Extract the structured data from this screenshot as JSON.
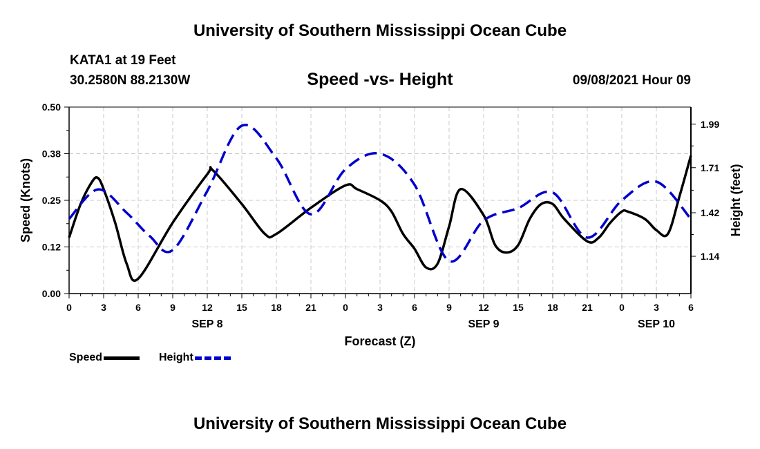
{
  "header": {
    "title": "University of Southern Mississippi Ocean Cube",
    "station": "KATA1 at 19 Feet",
    "coords": "30.2580N  88.2130W",
    "datetime": "09/08/2021 Hour 09"
  },
  "footer": {
    "title": "University of Southern Mississippi Ocean Cube"
  },
  "colors": {
    "speed": "#000000",
    "height": "#0000cc",
    "grid": "#c8c8c8"
  },
  "chart_data": {
    "type": "line",
    "title": "Speed -vs- Height",
    "xlabel": "Forecast (Z)",
    "ylabel_left": "Speed (Knots)",
    "ylabel_right": "Height (feet)",
    "x_ticks": [
      "0",
      "3",
      "6",
      "9",
      "12",
      "15",
      "18",
      "21",
      "0",
      "3",
      "6",
      "9",
      "12",
      "15",
      "18",
      "21",
      "0",
      "3",
      "6"
    ],
    "day_labels": [
      {
        "label": "SEP 8",
        "hour_index": 12
      },
      {
        "label": "SEP 9",
        "hour_index": 36
      },
      {
        "label": "SEP 10",
        "hour_index": 51
      }
    ],
    "xlim": [
      0,
      54
    ],
    "ylim_left": [
      0,
      0.5
    ],
    "ylim_right": [
      0.9,
      2.1
    ],
    "y_ticks_left": [
      "0.00",
      "0.12",
      "0.25",
      "0.38",
      "0.50"
    ],
    "y_ticks_right": [
      "1.14",
      "1.42",
      "1.71",
      "1.99"
    ],
    "grid": true,
    "series": [
      {
        "name": "Speed",
        "axis": "left",
        "style": "solid",
        "hours": [
          0,
          1,
          2,
          2.5,
          3,
          4,
          5,
          6,
          9,
          12,
          12.5,
          15,
          17,
          18,
          21,
          24,
          25,
          27,
          28,
          29,
          30,
          31,
          32,
          33,
          34,
          36,
          37,
          38,
          39,
          40,
          41,
          42,
          43,
          45,
          46,
          47,
          48,
          48.5,
          50,
          51,
          52,
          53,
          54
        ],
        "values": [
          0.15,
          0.24,
          0.3,
          0.31,
          0.28,
          0.19,
          0.08,
          0.04,
          0.19,
          0.32,
          0.33,
          0.24,
          0.16,
          0.16,
          0.23,
          0.29,
          0.28,
          0.25,
          0.22,
          0.16,
          0.12,
          0.07,
          0.08,
          0.18,
          0.28,
          0.21,
          0.13,
          0.11,
          0.13,
          0.2,
          0.24,
          0.24,
          0.2,
          0.14,
          0.15,
          0.19,
          0.22,
          0.22,
          0.2,
          0.17,
          0.16,
          0.26,
          0.37
        ]
      },
      {
        "name": "Height",
        "axis": "right",
        "style": "dashed",
        "hours": [
          0,
          2.5,
          5,
          7,
          9,
          12,
          15,
          18,
          21,
          24,
          27,
          30,
          33,
          36,
          39,
          42,
          45,
          48,
          51,
          54
        ],
        "values": [
          1.38,
          1.57,
          1.42,
          1.27,
          1.18,
          1.56,
          1.98,
          1.77,
          1.41,
          1.7,
          1.8,
          1.6,
          1.11,
          1.37,
          1.45,
          1.55,
          1.26,
          1.5,
          1.62,
          1.38
        ]
      }
    ]
  }
}
